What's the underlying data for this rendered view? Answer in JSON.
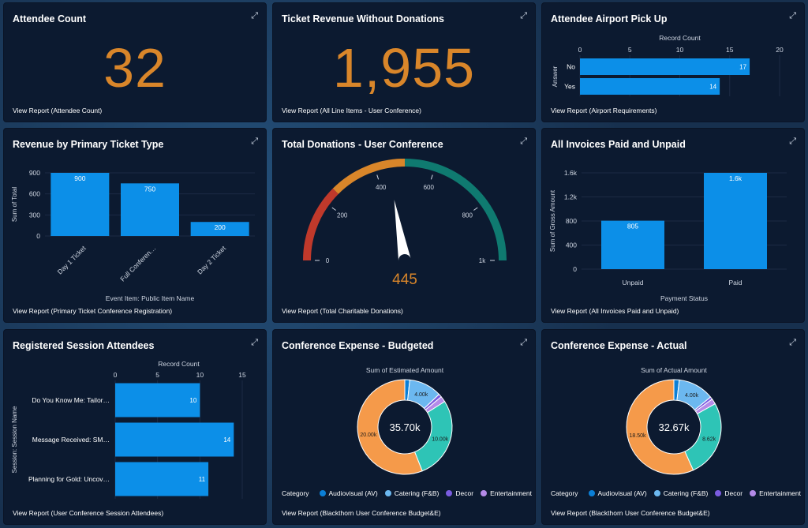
{
  "colors": {
    "bar": "#0c8fe8",
    "orange": "#d9862a",
    "card": "#0c1a30"
  },
  "cards": {
    "attendee_count": {
      "title": "Attendee Count",
      "value": "32",
      "footer": "View Report (Attendee Count)"
    },
    "ticket_revenue": {
      "title": "Ticket Revenue Without Donations",
      "value": "1,955",
      "footer": "View Report (All Line Items - User Conference)"
    },
    "airport": {
      "title": "Attendee Airport Pick Up",
      "footer": "View Report (Airport Requirements)"
    },
    "revenue_type": {
      "title": "Revenue by Primary Ticket Type",
      "footer": "View Report (Primary Ticket Conference Registration)"
    },
    "donations": {
      "title": "Total Donations - User Conference",
      "footer": "View Report (Total Charitable Donations)"
    },
    "invoices": {
      "title": "All Invoices Paid and Unpaid",
      "footer": "View Report (All Invoices Paid and Unpaid)"
    },
    "sessions": {
      "title": "Registered Session Attendees",
      "footer": "View Report (User Conference Session Attendees)"
    },
    "budgeted": {
      "title": "Conference Expense - Budgeted",
      "footer": "View Report (Blackthorn User Conference Budget&E)"
    },
    "actual": {
      "title": "Conference Expense - Actual",
      "footer": "View Report (Blackthorn User Conference Budget&E)"
    }
  },
  "legend": {
    "label": "Category",
    "items": [
      {
        "name": "Audiovisual (AV)",
        "color": "#0b7fd6"
      },
      {
        "name": "Catering (F&B)",
        "color": "#6cb8f0"
      },
      {
        "name": "Decor",
        "color": "#7a5ce0"
      },
      {
        "name": "Entertainment",
        "color": "#b48ae8"
      }
    ]
  },
  "chart_data": [
    {
      "id": "airport",
      "type": "bar",
      "orientation": "horizontal",
      "title": "Record Count",
      "ylabel": "Answer",
      "categories": [
        "No",
        "Yes"
      ],
      "values": [
        17,
        14
      ],
      "xlim": [
        0,
        20
      ],
      "ticks": [
        0,
        5,
        10,
        15,
        20
      ]
    },
    {
      "id": "revenue_type",
      "type": "bar",
      "ylabel": "Sum of Total",
      "xlabel": "Event Item: Public Item Name",
      "categories": [
        "Day 1 Ticket",
        "Full Conferen…",
        "Day 2 Ticket"
      ],
      "values": [
        900,
        750,
        200
      ],
      "ylim": [
        0,
        900
      ],
      "ticks": [
        0,
        300,
        600,
        900
      ]
    },
    {
      "id": "donations",
      "type": "gauge",
      "value": 445,
      "value_label": "445",
      "min": 0,
      "max": 1000,
      "tick_labels": [
        "0",
        "200",
        "400",
        "600",
        "800",
        "1k"
      ]
    },
    {
      "id": "invoices",
      "type": "bar",
      "ylabel": "Sum of Gross Amount",
      "xlabel": "Payment Status",
      "categories": [
        "Unpaid",
        "Paid"
      ],
      "values": [
        805,
        1600
      ],
      "value_labels": [
        "805",
        "1.6k"
      ],
      "ylim": [
        0,
        1600
      ],
      "tick_labels": [
        "0",
        "400",
        "800",
        "1.2k",
        "1.6k"
      ]
    },
    {
      "id": "sessions",
      "type": "bar",
      "orientation": "horizontal",
      "title": "Record Count",
      "ylabel": "Session: Session Name",
      "categories": [
        "Do You Know Me: Tailor…",
        "Message Received: SM…",
        "Planning for Gold: Uncov…"
      ],
      "values": [
        10,
        14,
        11
      ],
      "xlim": [
        0,
        15
      ],
      "ticks": [
        0,
        5,
        10,
        15
      ]
    },
    {
      "id": "budgeted",
      "type": "pie",
      "donut": true,
      "title": "Sum of Estimated Amount",
      "center_label": "35.70k",
      "total": 35.7,
      "slices": [
        {
          "name": "Audiovisual (AV)",
          "value": 0.6,
          "label": ""
        },
        {
          "name": "Catering (F&B)",
          "value": 4.0,
          "label": "4.00k"
        },
        {
          "name": "Decor",
          "value": 0.4,
          "label": ""
        },
        {
          "name": "Entertainment",
          "value": 0.7,
          "label": ""
        },
        {
          "name": "Other teal",
          "value": 10.0,
          "label": "10.00k"
        },
        {
          "name": "Other orange",
          "value": 20.0,
          "label": "20.00k"
        }
      ]
    },
    {
      "id": "actual",
      "type": "pie",
      "donut": true,
      "title": "Sum of Actual Amount",
      "center_label": "32.67k",
      "total": 32.67,
      "slices": [
        {
          "name": "Audiovisual (AV)",
          "value": 0.6,
          "label": ""
        },
        {
          "name": "Catering (F&B)",
          "value": 4.0,
          "label": "4.00k"
        },
        {
          "name": "Decor",
          "value": 0.3,
          "label": ""
        },
        {
          "name": "Entertainment",
          "value": 0.6,
          "label": ""
        },
        {
          "name": "Other teal",
          "value": 8.62,
          "label": "8.62k"
        },
        {
          "name": "Other orange",
          "value": 18.5,
          "label": "18.50k"
        }
      ]
    }
  ]
}
